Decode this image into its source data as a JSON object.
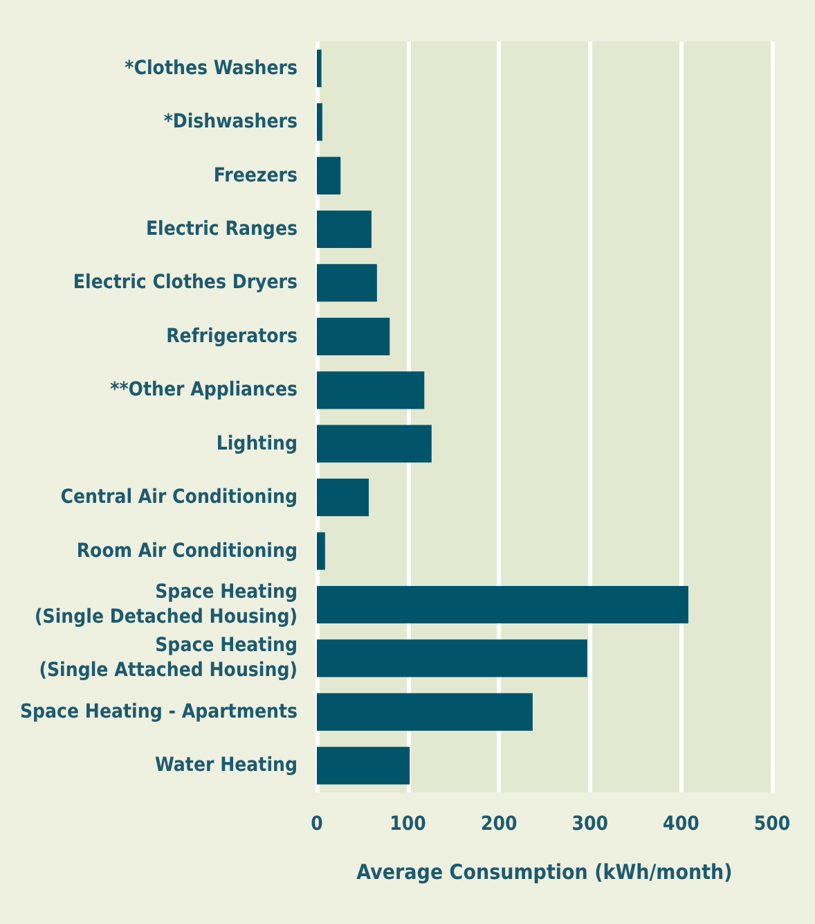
{
  "chart_data": {
    "type": "bar",
    "orientation": "horizontal",
    "xlabel": "Average Consumption (kWh/month)",
    "categories": [
      "*Clothes Washers",
      "*Dishwashers",
      "Freezers",
      "Electric Ranges",
      "Electric Clothes Dryers",
      "Refrigerators",
      "**Other Appliances",
      "Lighting",
      "Central Air Conditioning",
      "Room Air Conditioning",
      "Space Heating\n(Single Detached Housing)",
      "Space Heating\n(Single Attached Housing)",
      "Space Heating - Apartments",
      "Water Heating"
    ],
    "values": [
      5,
      6,
      26,
      60,
      66,
      80,
      118,
      126,
      57,
      9,
      408,
      297,
      237,
      102
    ],
    "color": "#01546a",
    "xlim": [
      0,
      500
    ],
    "xticks": [
      0,
      100,
      200,
      300,
      400,
      500
    ],
    "grid": "x"
  }
}
